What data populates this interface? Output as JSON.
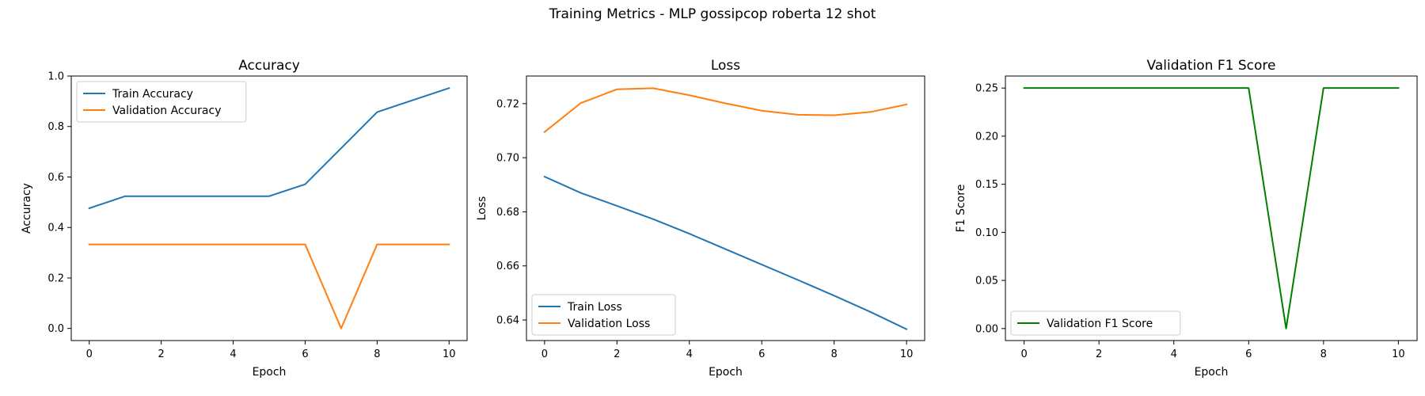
{
  "suptitle": "Training Metrics - MLP gossipcop roberta 12 shot",
  "chart_data": [
    {
      "type": "line",
      "title": "Accuracy",
      "xlabel": "Epoch",
      "ylabel": "Accuracy",
      "x": [
        0,
        1,
        2,
        3,
        4,
        5,
        6,
        7,
        8,
        9,
        10
      ],
      "xlim": [
        -0.5,
        10.5
      ],
      "ylim": [
        -0.048,
        1.0
      ],
      "xticks": [
        0,
        2,
        4,
        6,
        8,
        10
      ],
      "xtick_labels": [
        "0",
        "2",
        "4",
        "6",
        "8",
        "10"
      ],
      "yticks": [
        0.0,
        0.2,
        0.4,
        0.6,
        0.8,
        1.0
      ],
      "ytick_labels": [
        "0.0",
        "0.2",
        "0.4",
        "0.6",
        "0.8",
        "1.0"
      ],
      "legend_loc": "upper-left",
      "grid": false,
      "series": [
        {
          "name": "Train Accuracy",
          "color": "#1f77b4",
          "values": [
            0.476,
            0.524,
            0.524,
            0.524,
            0.524,
            0.524,
            0.571,
            0.714,
            0.857,
            0.905,
            0.952
          ]
        },
        {
          "name": "Validation Accuracy",
          "color": "#ff7f0e",
          "values": [
            0.333,
            0.333,
            0.333,
            0.333,
            0.333,
            0.333,
            0.333,
            0.0,
            0.333,
            0.333,
            0.333
          ]
        }
      ]
    },
    {
      "type": "line",
      "title": "Loss",
      "xlabel": "Epoch",
      "ylabel": "Loss",
      "x": [
        0,
        1,
        2,
        3,
        4,
        5,
        6,
        7,
        8,
        9,
        10
      ],
      "xlim": [
        -0.5,
        10.5
      ],
      "ylim": [
        0.6324,
        0.7302
      ],
      "xticks": [
        0,
        2,
        4,
        6,
        8,
        10
      ],
      "xtick_labels": [
        "0",
        "2",
        "4",
        "6",
        "8",
        "10"
      ],
      "yticks": [
        0.64,
        0.66,
        0.68,
        0.7,
        0.72
      ],
      "ytick_labels": [
        "0.64",
        "0.66",
        "0.68",
        "0.70",
        "0.72"
      ],
      "legend_loc": "lower-left",
      "grid": false,
      "series": [
        {
          "name": "Train Loss",
          "color": "#1f77b4",
          "values": [
            0.693,
            0.687,
            0.6822,
            0.6773,
            0.6719,
            0.6662,
            0.6605,
            0.6548,
            0.649,
            0.643,
            0.6366
          ]
        },
        {
          "name": "Validation Loss",
          "color": "#ff7f0e",
          "values": [
            0.7095,
            0.7202,
            0.7253,
            0.7257,
            0.7231,
            0.7201,
            0.7174,
            0.7159,
            0.7157,
            0.7169,
            0.7197
          ]
        }
      ]
    },
    {
      "type": "line",
      "title": "Validation F1 Score",
      "xlabel": "Epoch",
      "ylabel": "F1 Score",
      "x": [
        0,
        1,
        2,
        3,
        4,
        5,
        6,
        7,
        8,
        9,
        10
      ],
      "xlim": [
        -0.5,
        10.5
      ],
      "ylim": [
        -0.0125,
        0.2625
      ],
      "xticks": [
        0,
        2,
        4,
        6,
        8,
        10
      ],
      "xtick_labels": [
        "0",
        "2",
        "4",
        "6",
        "8",
        "10"
      ],
      "yticks": [
        0.0,
        0.05,
        0.1,
        0.15,
        0.2,
        0.25
      ],
      "ytick_labels": [
        "0.00",
        "0.05",
        "0.10",
        "0.15",
        "0.20",
        "0.25"
      ],
      "legend_loc": "lower-left",
      "grid": false,
      "series": [
        {
          "name": "Validation F1 Score",
          "color": "#008000",
          "values": [
            0.25,
            0.25,
            0.25,
            0.25,
            0.25,
            0.25,
            0.25,
            0.0,
            0.25,
            0.25,
            0.25
          ]
        }
      ]
    }
  ]
}
